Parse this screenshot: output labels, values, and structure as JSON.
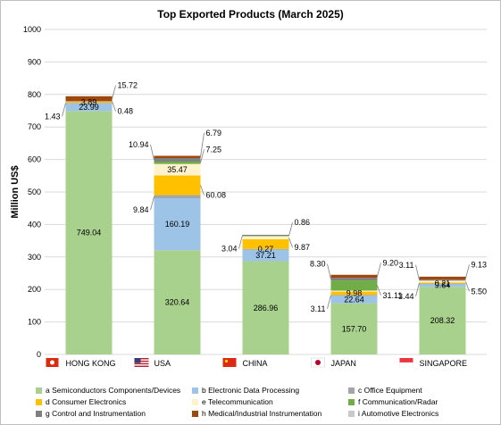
{
  "chart_data": {
    "type": "bar",
    "stacked": true,
    "title": "Top Exported Products (March 2025)",
    "ylabel": "Million US$",
    "ylim": [
      0,
      1000
    ],
    "yticks": [
      0,
      100,
      200,
      300,
      400,
      500,
      600,
      700,
      800,
      900,
      1000
    ],
    "grid": true,
    "legend_position": "bottom",
    "categories": [
      "HONG KONG",
      "USA",
      "CHINA",
      "JAPAN",
      "SINGAPORE"
    ],
    "flag_icons": [
      "hong-kong-flag-icon",
      "usa-flag-icon",
      "china-flag-icon",
      "japan-flag-icon",
      "singapore-flag-icon"
    ],
    "series": [
      {
        "name": "a Semiconductors Components/Devices",
        "color": "#a9d18e",
        "values": [
          749.04,
          320.64,
          286.96,
          157.7,
          208.32
        ]
      },
      {
        "name": "b Electronic Data Processing",
        "color": "#9dc3e6",
        "values": [
          23.99,
          160.19,
          37.21,
          22.64,
          9.64
        ]
      },
      {
        "name": "c Office Equipment",
        "color": "#a5a5a5",
        "values": [
          1.43,
          9.84,
          0.27,
          3.11,
          0.21
        ]
      },
      {
        "name": "d Consumer Electronics",
        "color": "#ffc000",
        "values": [
          3.89,
          60.08,
          30.0,
          9.98,
          3.44
        ]
      },
      {
        "name": "e Telecommunication",
        "color": "#fff2cc",
        "values": [
          0.48,
          35.47,
          9.87,
          3.11,
          5.5
        ]
      },
      {
        "name": "f Communication/Radar",
        "color": "#70ad47",
        "values": [
          0,
          7.25,
          0.86,
          31.11,
          0
        ]
      },
      {
        "name": "g Control and Instrumentation",
        "color": "#7f7f7f",
        "values": [
          0,
          10.94,
          3.04,
          8.3,
          3.11
        ]
      },
      {
        "name": "h Medical/Industrial Instrumentation",
        "color": "#9e480e",
        "values": [
          15.72,
          6.79,
          0,
          9.2,
          9.13
        ]
      },
      {
        "name": "i Automotive Electronics",
        "color": "#c9c9c9",
        "values": [
          0,
          0,
          0,
          0,
          0
        ]
      }
    ],
    "data_labels": [
      [
        {
          "text": "749.04",
          "series": 0,
          "pos": "inside"
        },
        {
          "text": "23.99",
          "series": 1,
          "pos": "inside"
        },
        {
          "text": "3.89",
          "series": 3,
          "pos": "inside"
        },
        {
          "text": "1.43",
          "series": 2,
          "pos": "left"
        },
        {
          "text": "0.48",
          "series": 4,
          "pos": "right"
        },
        {
          "text": "15.72",
          "series": 7,
          "pos": "right"
        }
      ],
      [
        {
          "text": "320.64",
          "series": 0,
          "pos": "inside"
        },
        {
          "text": "160.19",
          "series": 1,
          "pos": "inside"
        },
        {
          "text": "9.84",
          "series": 2,
          "pos": "left"
        },
        {
          "text": "60.08",
          "series": 3,
          "pos": "right"
        },
        {
          "text": "35.47",
          "series": 4,
          "pos": "inside"
        },
        {
          "text": "7.25",
          "series": 5,
          "pos": "right"
        },
        {
          "text": "10.94",
          "series": 6,
          "pos": "left"
        },
        {
          "text": "6.79",
          "series": 7,
          "pos": "right"
        }
      ],
      [
        {
          "text": "286.96",
          "series": 0,
          "pos": "inside"
        },
        {
          "text": "37.21",
          "series": 1,
          "pos": "inside"
        },
        {
          "text": "0.27",
          "series": 2,
          "pos": "inside"
        },
        {
          "text": "3.04",
          "series": 6,
          "pos": "left"
        },
        {
          "text": "9.87",
          "series": 4,
          "pos": "right"
        },
        {
          "text": "0.86",
          "series": 5,
          "pos": "right"
        }
      ],
      [
        {
          "text": "157.70",
          "series": 0,
          "pos": "inside"
        },
        {
          "text": "22.64",
          "series": 1,
          "pos": "inside"
        },
        {
          "text": "9.98",
          "series": 3,
          "pos": "inside"
        },
        {
          "text": "3.11",
          "series": 2,
          "pos": "left"
        },
        {
          "text": "31.11",
          "series": 5,
          "pos": "right"
        },
        {
          "text": "8.30",
          "series": 6,
          "pos": "left"
        },
        {
          "text": "9.20",
          "series": 7,
          "pos": "right"
        }
      ],
      [
        {
          "text": "208.32",
          "series": 0,
          "pos": "inside"
        },
        {
          "text": "9.64",
          "series": 1,
          "pos": "inside"
        },
        {
          "text": "0.21",
          "series": 2,
          "pos": "inside"
        },
        {
          "text": "3.44",
          "series": 3,
          "pos": "left"
        },
        {
          "text": "5.50",
          "series": 4,
          "pos": "right"
        },
        {
          "text": "3.11",
          "series": 6,
          "pos": "left"
        },
        {
          "text": "9.13",
          "series": 7,
          "pos": "right"
        }
      ]
    ]
  }
}
